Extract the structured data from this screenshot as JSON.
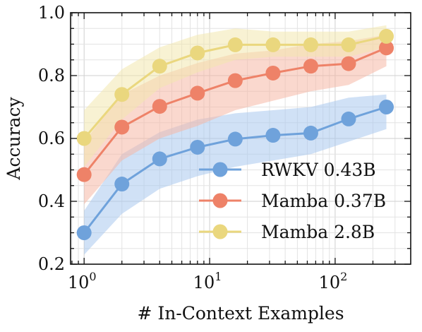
{
  "chart_data": {
    "type": "line",
    "xlabel": "# In-Context Examples",
    "ylabel": "Accuracy",
    "x_scale": "log",
    "x": [
      1,
      2,
      4,
      8,
      16,
      32,
      64,
      128,
      256
    ],
    "xlim": [
      0.78,
      400
    ],
    "ylim": [
      0.2,
      1.0
    ],
    "yticks": [
      0.2,
      0.4,
      0.6,
      0.8,
      1.0
    ],
    "ytick_labels": [
      "0.2",
      "0.4",
      "0.6",
      "0.8",
      "1.0"
    ],
    "xticks": [
      1,
      10,
      100
    ],
    "xtick_labels": [
      {
        "base": "10",
        "exp": "0"
      },
      {
        "base": "10",
        "exp": "1"
      },
      {
        "base": "10",
        "exp": "2"
      }
    ],
    "grid": true,
    "legend_position": "lower-right",
    "series": [
      {
        "name": "RWKV 0.43B",
        "color": "#6FA2DB",
        "band_color": "#A9C8EE",
        "values": [
          0.3,
          0.455,
          0.535,
          0.572,
          0.598,
          0.61,
          0.617,
          0.662,
          0.7
        ],
        "lower": [
          0.23,
          0.36,
          0.44,
          0.48,
          0.51,
          0.53,
          0.55,
          0.59,
          0.63
        ],
        "upper": [
          0.37,
          0.55,
          0.62,
          0.66,
          0.68,
          0.69,
          0.7,
          0.73,
          0.74
        ]
      },
      {
        "name": "Mamba 0.37B",
        "color": "#EE8268",
        "band_color": "#F6B8A6",
        "values": [
          0.485,
          0.636,
          0.702,
          0.744,
          0.784,
          0.808,
          0.83,
          0.838,
          0.888
        ],
        "lower": [
          0.39,
          0.53,
          0.6,
          0.64,
          0.69,
          0.72,
          0.75,
          0.77,
          0.83
        ],
        "upper": [
          0.59,
          0.74,
          0.8,
          0.84,
          0.87,
          0.88,
          0.9,
          0.91,
          0.93
        ]
      },
      {
        "name": "Mamba 2.8B",
        "color": "#EAD77E",
        "band_color": "#F3E8AE",
        "values": [
          0.6,
          0.74,
          0.83,
          0.872,
          0.898,
          0.898,
          0.898,
          0.898,
          0.925
        ],
        "lower": [
          0.51,
          0.66,
          0.76,
          0.81,
          0.85,
          0.86,
          0.86,
          0.86,
          0.89
        ],
        "upper": [
          0.69,
          0.82,
          0.89,
          0.93,
          0.95,
          0.94,
          0.94,
          0.94,
          0.96
        ]
      }
    ]
  }
}
